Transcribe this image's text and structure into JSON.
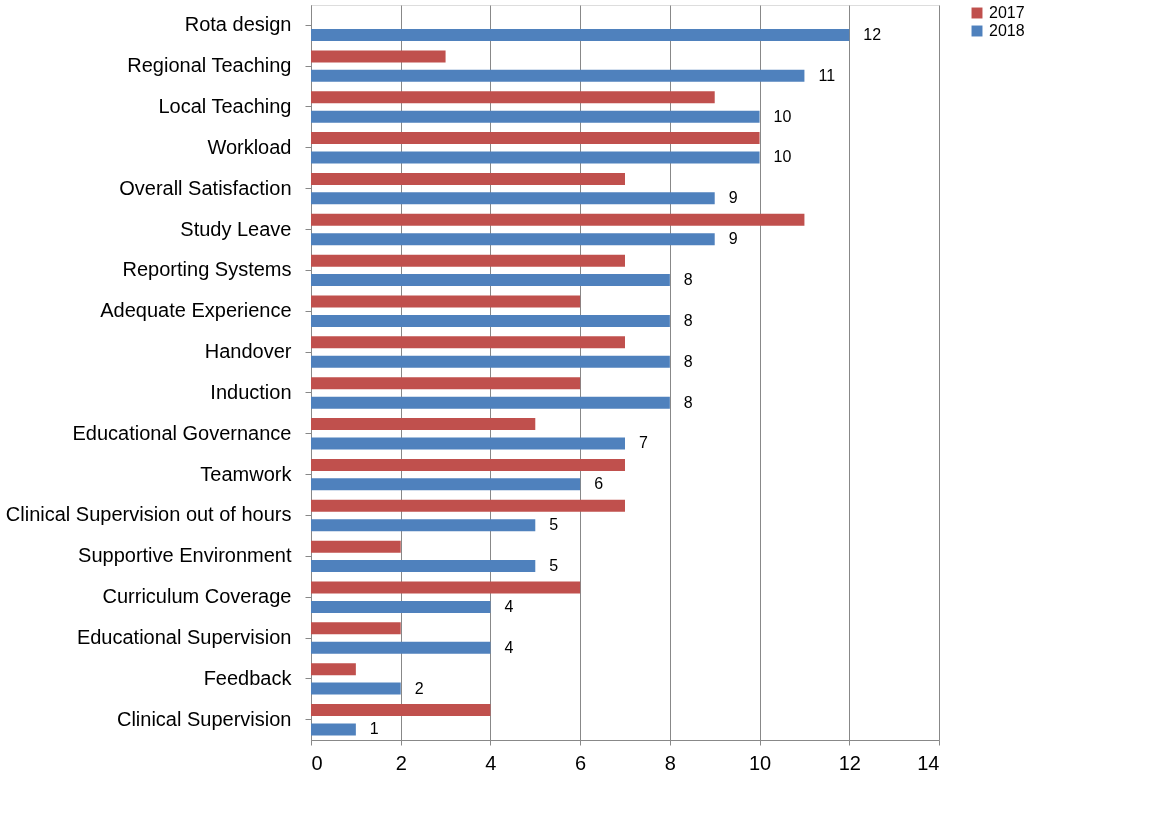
{
  "chart_data": {
    "type": "bar",
    "orientation": "horizontal",
    "categories": [
      "Rota design",
      "Regional Teaching",
      "Local Teaching",
      "Workload",
      "Overall Satisfaction",
      "Study Leave",
      "Reporting Systems",
      "Adequate Experience",
      "Handover",
      "Induction",
      "Educational Governance",
      "Teamwork",
      "Clinical Supervision out of hours",
      "Supportive Environment",
      "Curriculum Coverage",
      "Educational Supervision",
      "Feedback",
      "Clinical Supervision"
    ],
    "series": [
      {
        "name": "2017",
        "color": "#c0504d",
        "values": [
          null,
          3,
          9,
          10,
          7,
          11,
          7,
          6,
          7,
          6,
          5,
          7,
          7,
          2,
          6,
          2,
          1,
          4
        ]
      },
      {
        "name": "2018",
        "color": "#4f81bd",
        "values": [
          12,
          11,
          10,
          10,
          9,
          9,
          8,
          8,
          8,
          8,
          7,
          6,
          5,
          5,
          4,
          4,
          2,
          1
        ],
        "value_labels": [
          "12",
          "11",
          "10",
          "10",
          "9",
          "9",
          "8",
          "8",
          "8",
          "8",
          "7",
          "6",
          "5",
          "5",
          "4",
          "4",
          "2",
          "1"
        ]
      }
    ],
    "xlim": [
      0,
      14
    ],
    "xticks": [
      0,
      2,
      4,
      6,
      8,
      10,
      12,
      14
    ],
    "grid": "x",
    "legend": "right"
  }
}
